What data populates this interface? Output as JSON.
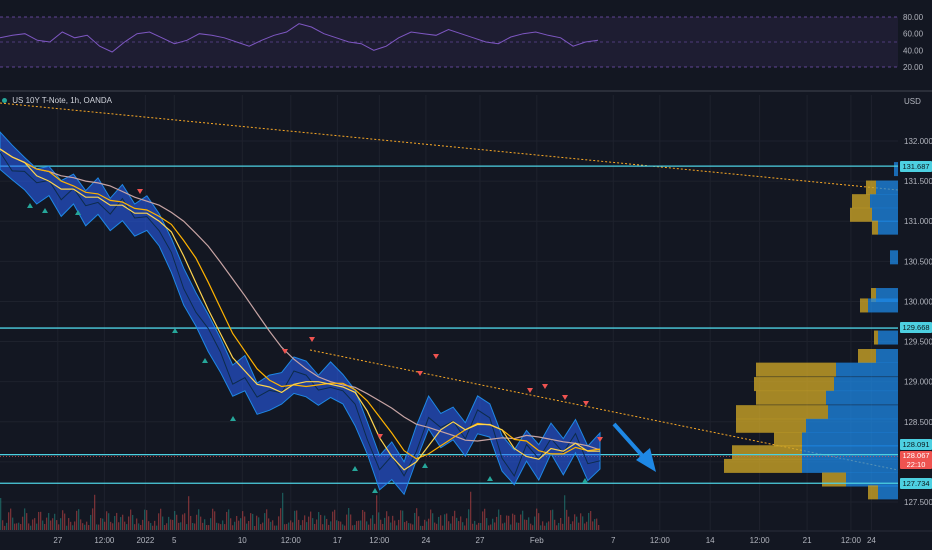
{
  "legend": {
    "text": "US 10Y T-Note, 1h, OANDA"
  },
  "rsi_axis": {
    "ticks": [
      "80.00",
      "60.00",
      "40.00",
      "20.00"
    ],
    "values": [
      80,
      60,
      40,
      20
    ]
  },
  "price_axis": {
    "ticks": [
      "132.000",
      "131.500",
      "131.000",
      "130.500",
      "130.000",
      "129.500",
      "129.000",
      "128.500",
      "128.000",
      "127.500"
    ],
    "values": [
      132.0,
      131.5,
      131.0,
      130.5,
      130.0,
      129.5,
      129.0,
      128.5,
      128.0,
      127.5
    ],
    "top_label": "USD"
  },
  "horizontal_levels": [
    {
      "value": 131.687,
      "label": "131.687"
    },
    {
      "value": 129.668,
      "label": "129.668"
    },
    {
      "value": 128.091,
      "label": "128.091"
    },
    {
      "value": 127.734,
      "label": "127.734"
    }
  ],
  "current_price": {
    "value": 128.067,
    "label": "128.067",
    "countdown": "22:10",
    "color": "#ef5350"
  },
  "time_axis": {
    "labels": [
      "27",
      "12:00",
      "2022",
      "5",
      "10",
      "12:00",
      "17",
      "12:00",
      "24",
      "27",
      "Feb",
      "7",
      "12:00",
      "14",
      "12:00",
      "21",
      "12:00",
      "24"
    ],
    "positions": [
      0.062,
      0.112,
      0.156,
      0.187,
      0.26,
      0.312,
      0.362,
      0.407,
      0.457,
      0.515,
      0.576,
      0.658,
      0.708,
      0.762,
      0.815,
      0.866,
      0.913,
      0.935
    ]
  },
  "colors": {
    "background": "#131722",
    "levels": "#4dd0e1",
    "band": "#2962ff",
    "ma_fast": "#ffd54f",
    "ma_mid": "#ffb300",
    "ma_slow": "#c7a4a4",
    "trendline": "#f9a825",
    "rsi": "#7e57c2",
    "vp_up": "#1e88e5",
    "vp_down": "#c9a227"
  },
  "chart_data": {
    "type": "line",
    "series": [
      {
        "kind": "price",
        "values": [
          131.9,
          131.7,
          131.6,
          131.4,
          131.5,
          131.3,
          131.4,
          131.2,
          131.3,
          131.1,
          131.2,
          131.0,
          131.1,
          130.9,
          130.6,
          130.2,
          129.9,
          129.6,
          129.3,
          129.0,
          129.1,
          128.8,
          128.9,
          128.9,
          129.1,
          129.0,
          128.9,
          129.0,
          128.9,
          128.7,
          128.3,
          127.9,
          128.0,
          127.8,
          128.2,
          128.6,
          128.4,
          128.5,
          128.3,
          128.6,
          128.5,
          128.1,
          127.9,
          128.2,
          128.0,
          128.3,
          128.1,
          128.3,
          128.0,
          128.1
        ]
      }
    ],
    "rsi": [
      55,
      58,
      60,
      52,
      50,
      62,
      55,
      58,
      45,
      38,
      50,
      60,
      62,
      55,
      48,
      52,
      60,
      58,
      55,
      50,
      45,
      52,
      58,
      62,
      72,
      68,
      60,
      55,
      50,
      48,
      40,
      45,
      55,
      62,
      60,
      58,
      65,
      60,
      55,
      50,
      48,
      56,
      60,
      62,
      58,
      55,
      45,
      50,
      52
    ]
  }
}
